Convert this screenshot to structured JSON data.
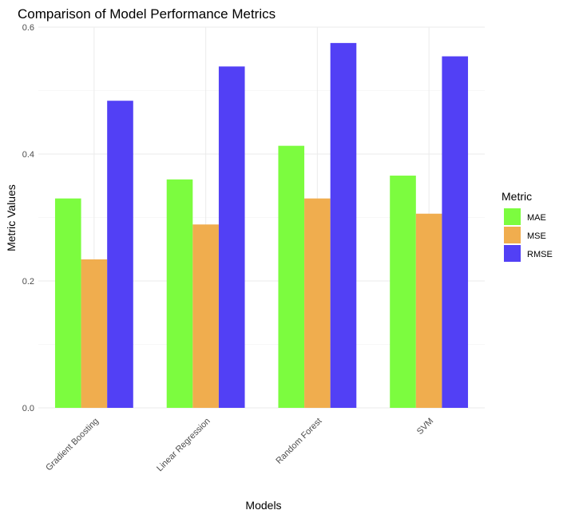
{
  "chart_data": {
    "type": "bar",
    "title": "Comparison of Model Performance Metrics",
    "xlabel": "Models",
    "ylabel": "Metric Values",
    "categories": [
      "Gradient Boosting",
      "Linear Regression",
      "Random Forest",
      "SVM"
    ],
    "series": [
      {
        "name": "MAE",
        "color": "#7CFC3F",
        "values": [
          0.33,
          0.36,
          0.413,
          0.366
        ]
      },
      {
        "name": "MSE",
        "color": "#F0AD4E",
        "values": [
          0.234,
          0.289,
          0.33,
          0.306
        ]
      },
      {
        "name": "RMSE",
        "color": "#5240F5",
        "values": [
          0.484,
          0.538,
          0.575,
          0.554
        ]
      }
    ],
    "ylim": [
      0,
      0.6
    ],
    "yticks": [
      "0.0",
      "0.2",
      "0.4",
      "0.6"
    ],
    "grid": true,
    "legend": {
      "title": "Metric",
      "placement": "right"
    }
  }
}
